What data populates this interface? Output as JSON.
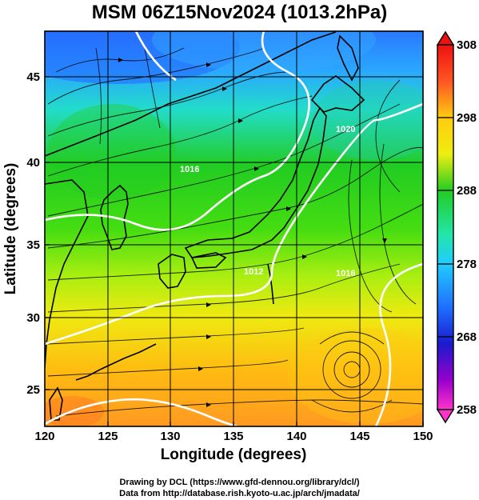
{
  "title": "MSM 06Z15Nov2024 (1013.2hPa)",
  "x_axis": {
    "label": "Longitude (degrees)",
    "ticks": [
      "120",
      "125",
      "130",
      "135",
      "140",
      "145",
      "150"
    ],
    "range": [
      120,
      150
    ]
  },
  "y_axis": {
    "label": "Latitude  (degrees)",
    "ticks": [
      "25",
      "30",
      "35",
      "40",
      "45"
    ],
    "range": [
      22.4,
      47.6
    ]
  },
  "colorbar": {
    "ticks": [
      "308",
      "298",
      "288",
      "278",
      "268",
      "258"
    ],
    "range": [
      258,
      308
    ],
    "colors": [
      "#ff33cc",
      "#9900cc",
      "#1a1acc",
      "#1f6fff",
      "#22ccff",
      "#22e6aa",
      "#22cc22",
      "#55dd11",
      "#bbee11",
      "#eeee11",
      "#ffcc11",
      "#ff9922",
      "#ff5522",
      "#ee1111"
    ]
  },
  "credits": {
    "line1": "Drawing by DCL (https://www.gfd-dennou.org/library/dcl/)",
    "line2": "Data from http://database.rish.kyoto-u.ac.jp/arch/jmadata/"
  },
  "contours": {
    "color": "#ffffff",
    "labels": [
      "1016",
      "1020",
      "1012",
      "1016"
    ]
  }
}
